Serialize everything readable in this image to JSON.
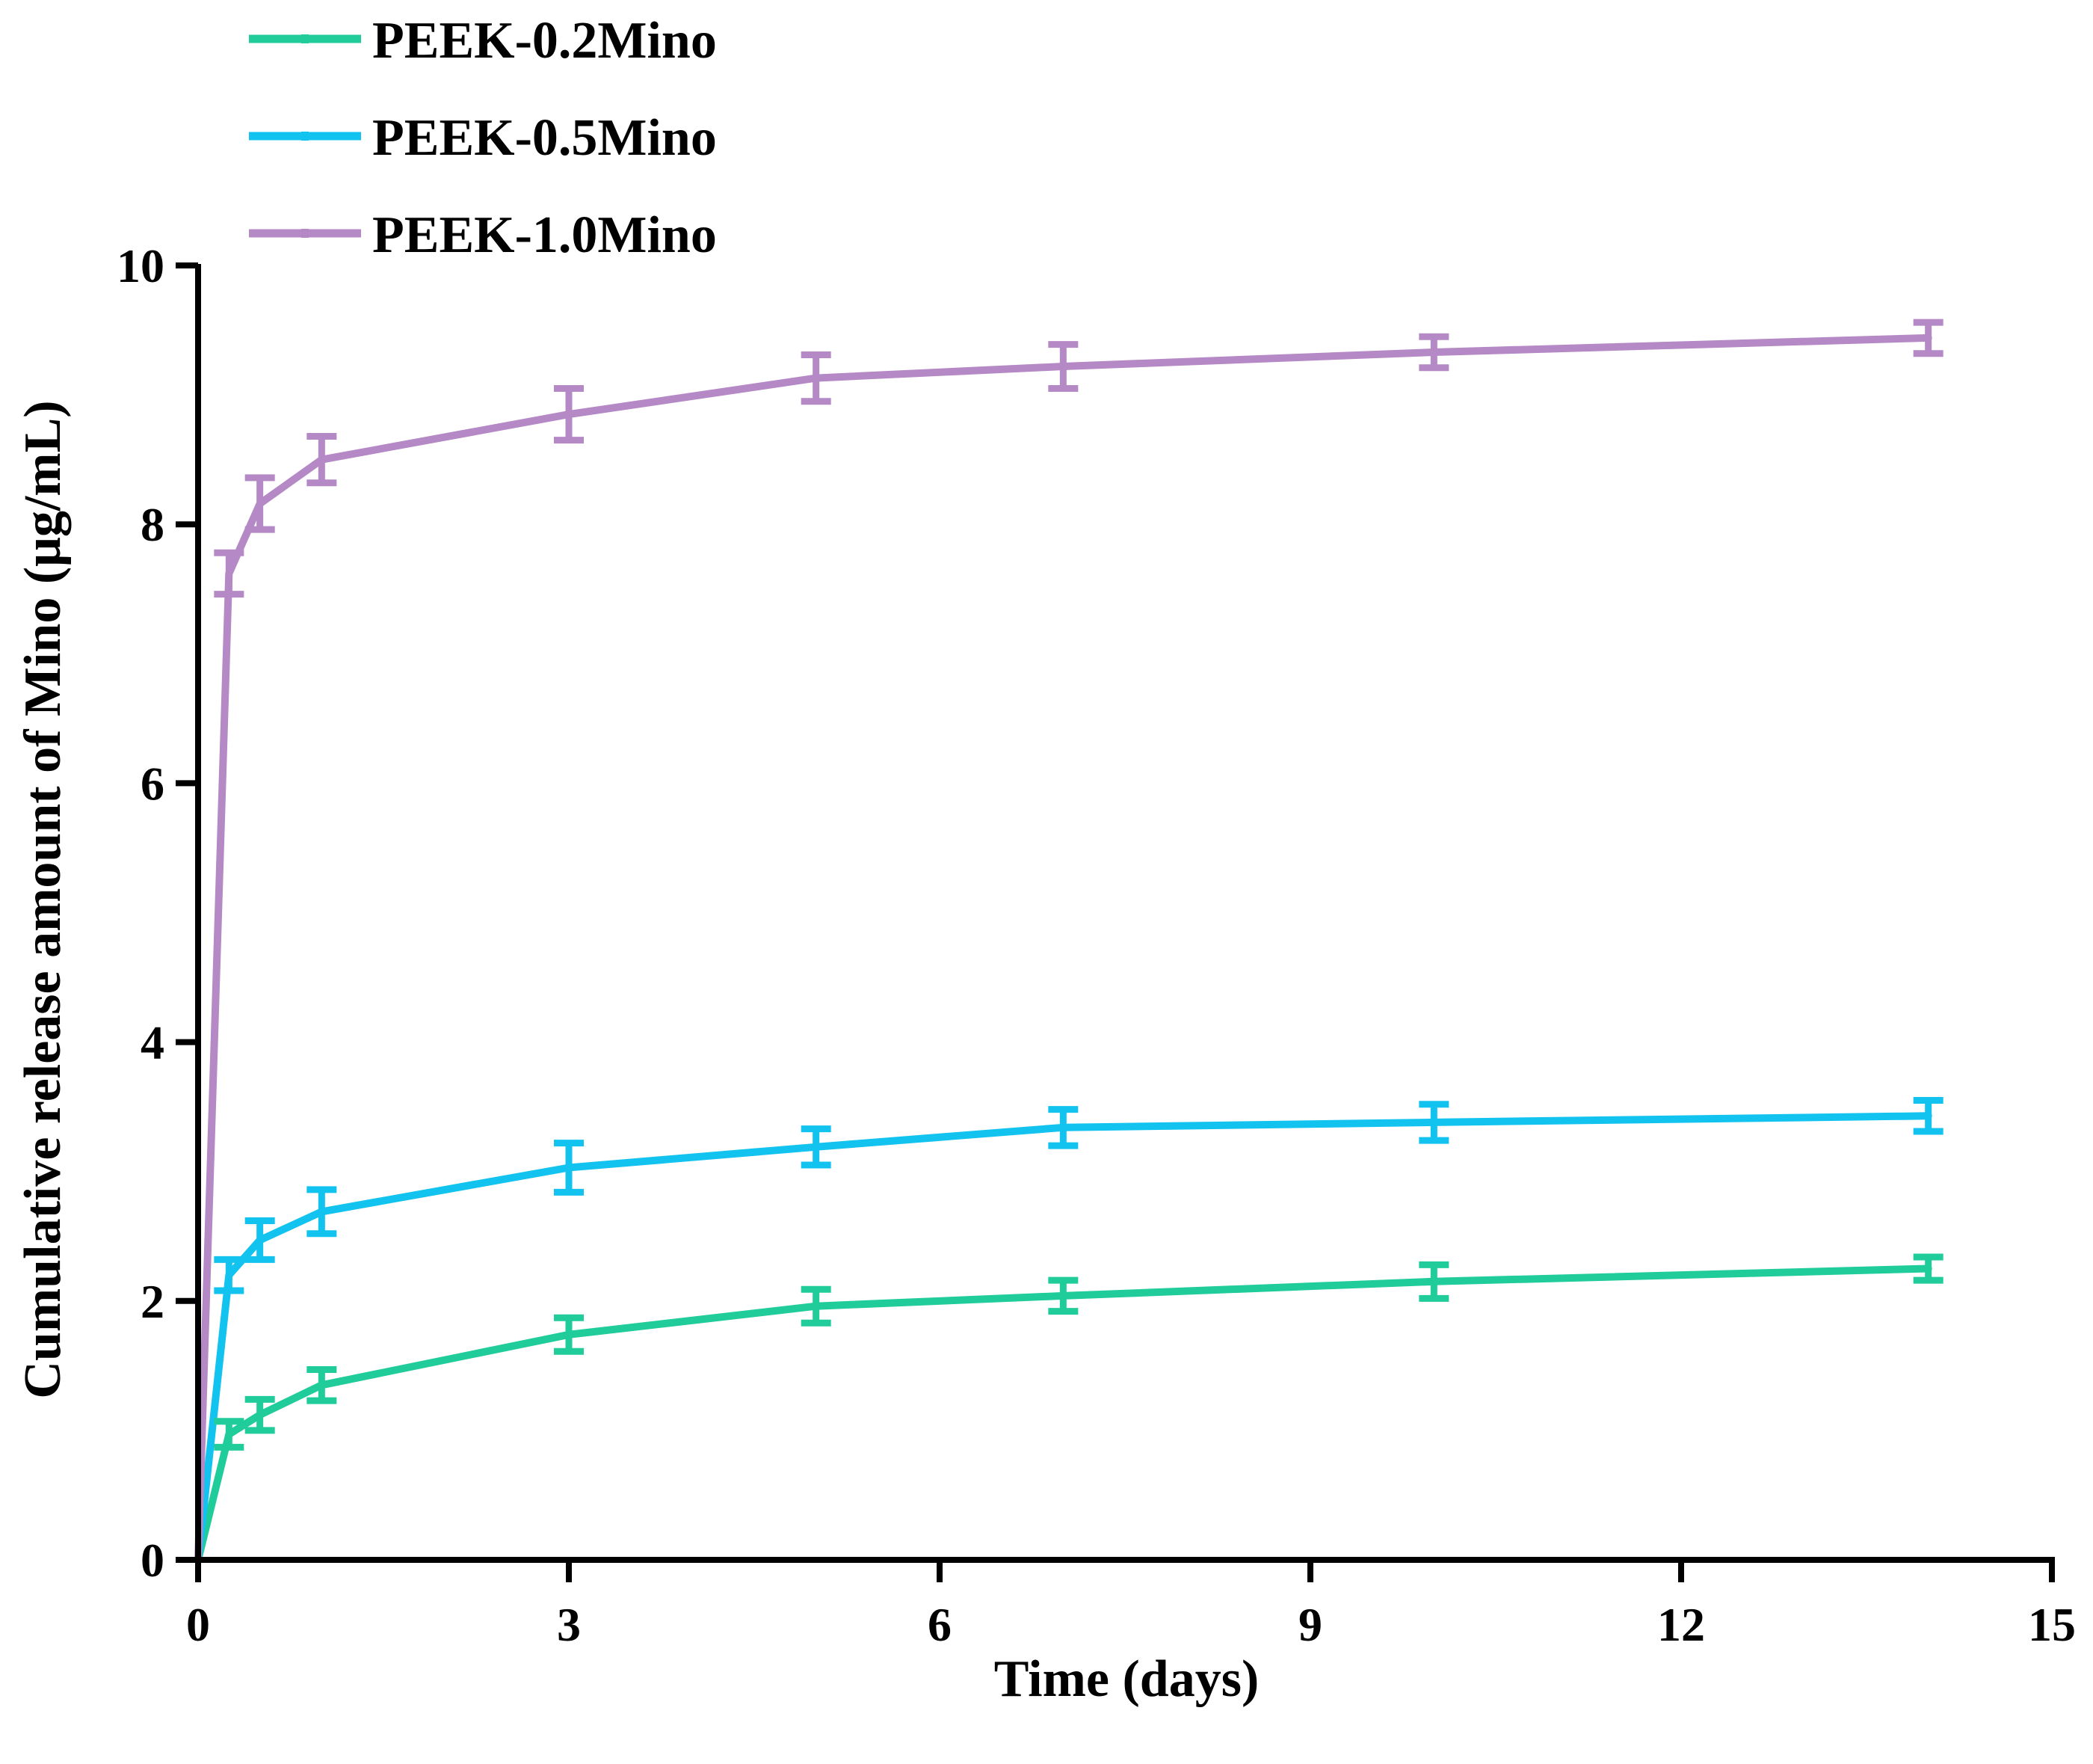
{
  "chart_data": {
    "type": "line",
    "title": "",
    "xlabel": "Time (days)",
    "ylabel": "Cumulative release amount of Mino (μg/mL)",
    "xlim": [
      0,
      15
    ],
    "ylim": [
      0,
      10
    ],
    "x_ticks": [
      0,
      3,
      6,
      9,
      12,
      15
    ],
    "y_ticks": [
      0,
      2,
      4,
      6,
      8,
      10
    ],
    "grid": false,
    "legend_position": "top-left",
    "x": [
      0,
      0.25,
      0.5,
      1,
      3,
      5,
      7,
      10,
      14
    ],
    "series": [
      {
        "name": "PEEK-0.2Mino",
        "color": "#1fcc9a",
        "values": [
          0,
          0.97,
          1.12,
          1.35,
          1.74,
          1.96,
          2.04,
          2.15,
          2.25
        ],
        "errors": [
          0,
          0.1,
          0.12,
          0.12,
          0.13,
          0.13,
          0.12,
          0.13,
          0.09
        ]
      },
      {
        "name": "PEEK-0.5Mino",
        "color": "#13c3ef",
        "values": [
          0,
          2.2,
          2.47,
          2.69,
          3.03,
          3.19,
          3.34,
          3.38,
          3.43
        ],
        "errors": [
          0,
          0.12,
          0.15,
          0.17,
          0.19,
          0.14,
          0.14,
          0.14,
          0.12
        ]
      },
      {
        "name": "PEEK-1.0Mino",
        "color": "#b489c5",
        "values": [
          0,
          7.62,
          8.16,
          8.5,
          8.85,
          9.13,
          9.22,
          9.33,
          9.44
        ],
        "errors": [
          0,
          0.16,
          0.2,
          0.18,
          0.2,
          0.18,
          0.17,
          0.12,
          0.12
        ]
      }
    ]
  }
}
